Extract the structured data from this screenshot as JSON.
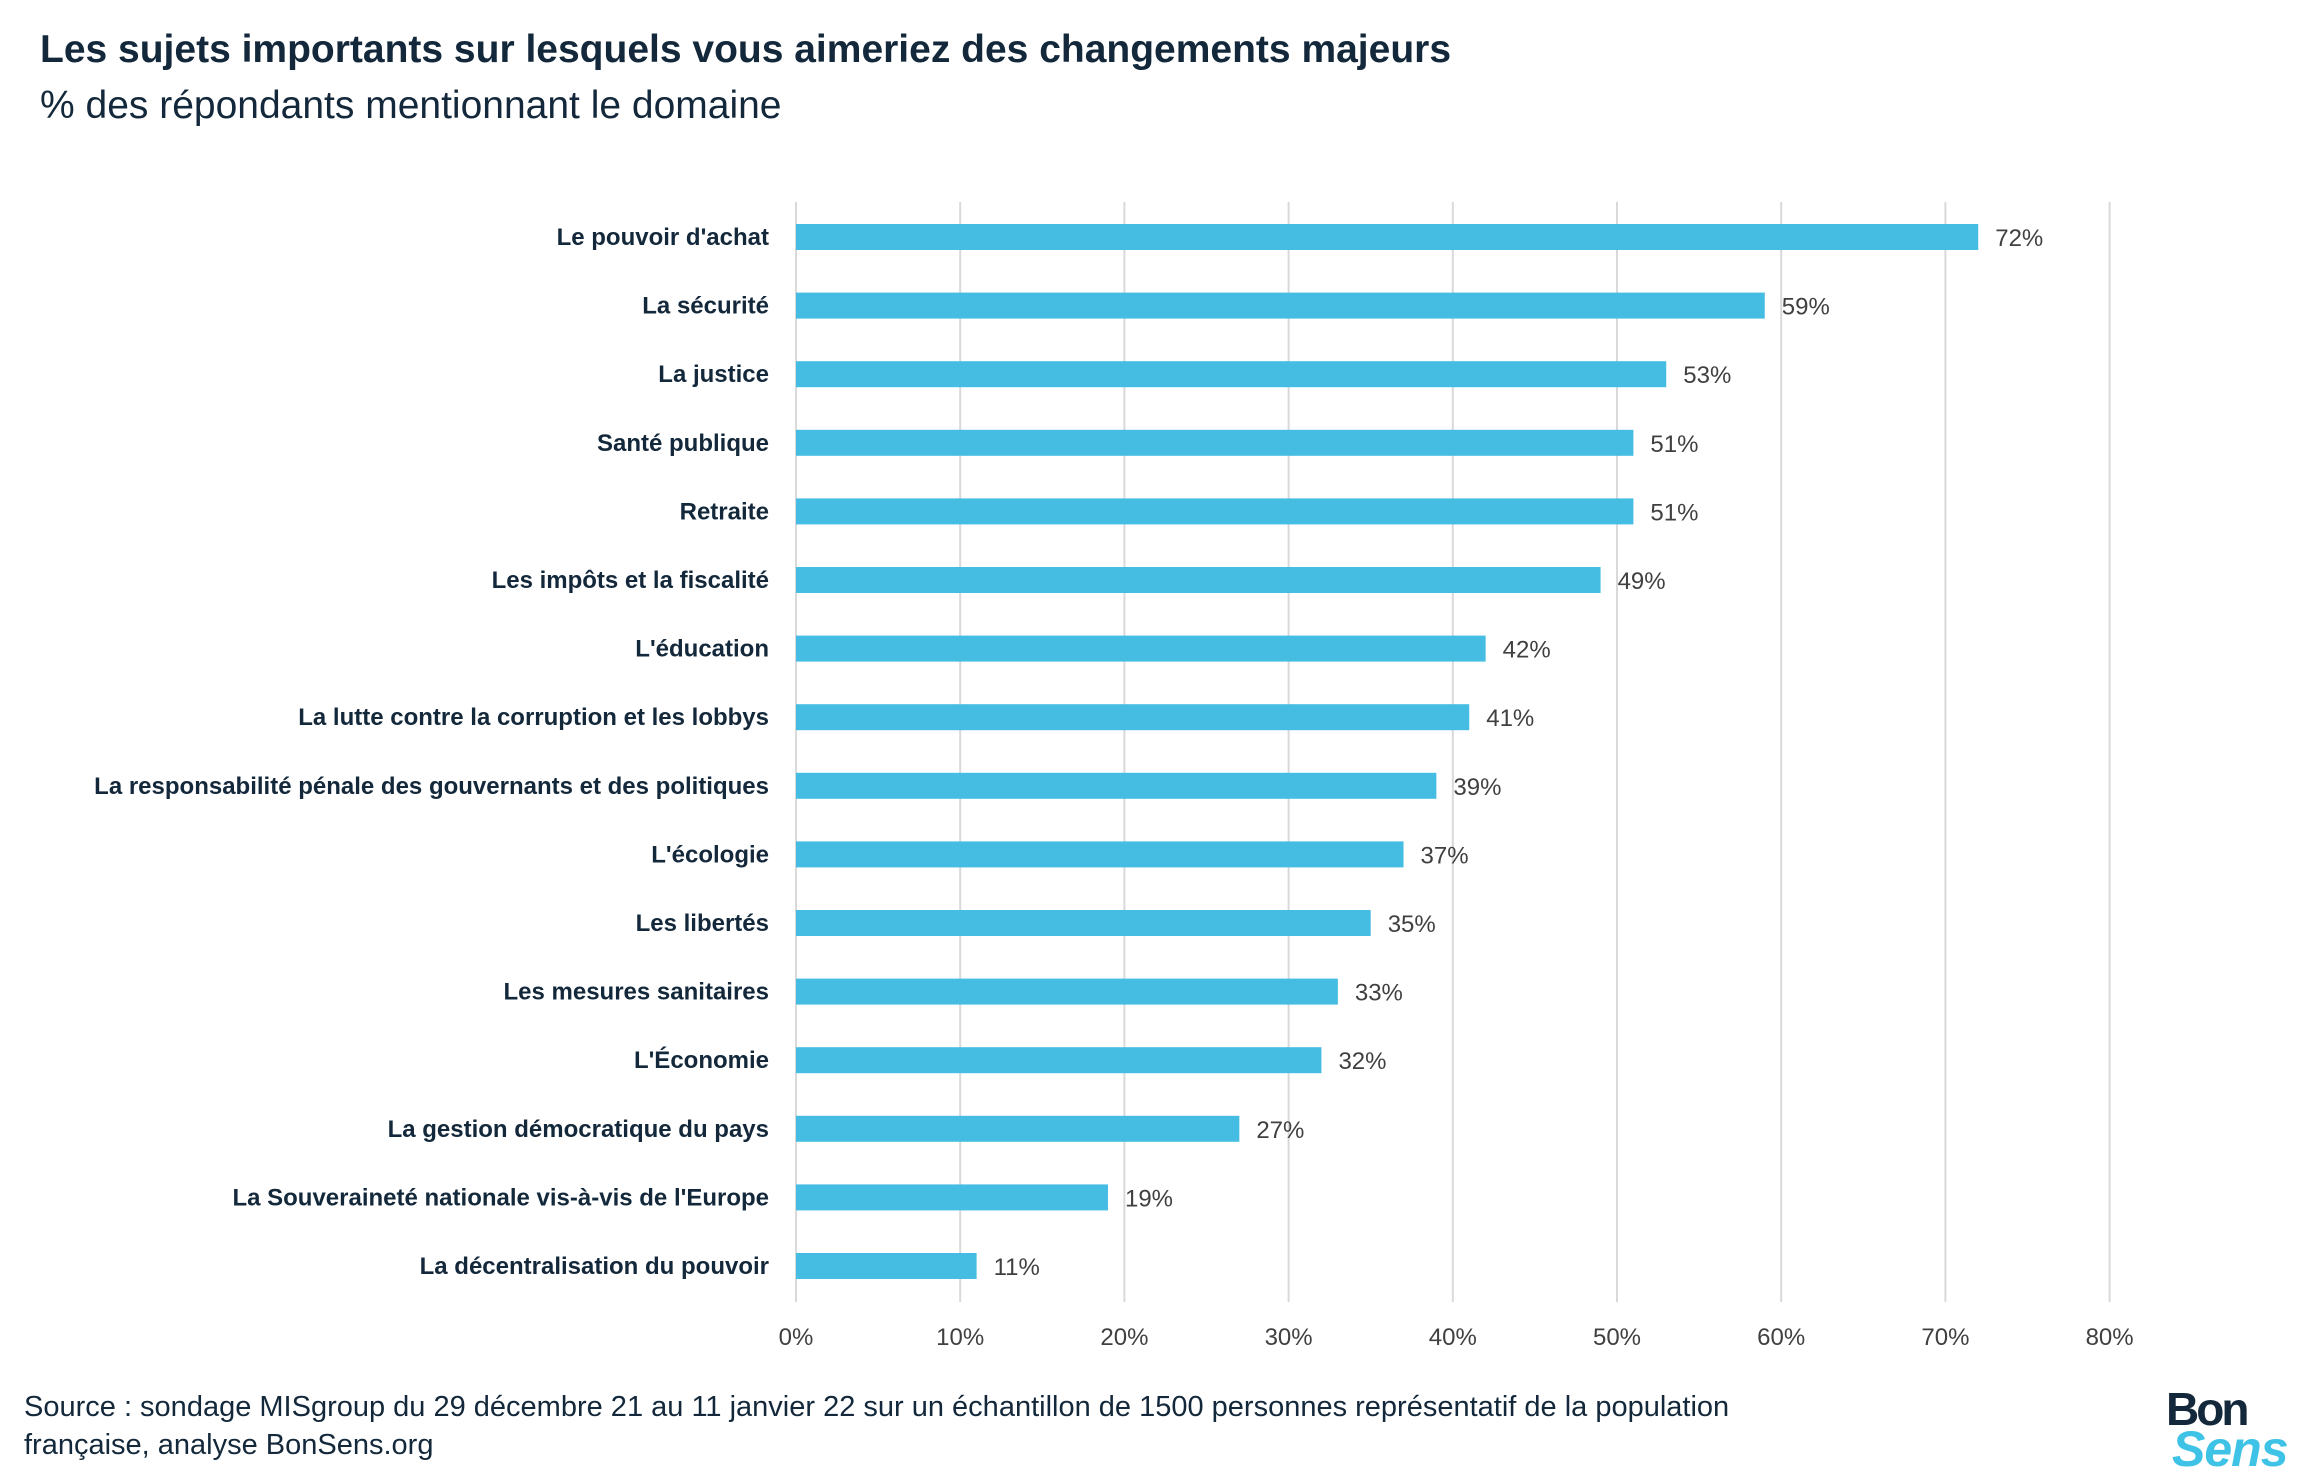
{
  "header": {
    "title": "Les sujets importants sur lesquels vous aimeriez des changements majeurs",
    "subtitle": "% des répondants mentionnant le domaine"
  },
  "footer": {
    "source": "Source : sondage MISgroup du 29 décembre 21 au 11 janvier 22 sur un échantillon de 1500 personnes représentatif de la population française, analyse BonSens.org"
  },
  "logo": {
    "line1": "Bon",
    "line2": "Sens"
  },
  "colors": {
    "bar": "#45bde3",
    "grid": "#d9d9d9",
    "text": "#13283a",
    "values": "#404040"
  },
  "chart_data": {
    "type": "bar",
    "orientation": "horizontal",
    "title": "Les sujets importants sur lesquels vous aimeriez des changements majeurs",
    "subtitle": "% des répondants mentionnant le domaine",
    "categories": [
      "Le pouvoir d'achat",
      "La sécurité",
      "La justice",
      "Santé publique",
      "Retraite",
      "Les impôts et la fiscalité",
      "L'éducation",
      "La lutte contre la corruption et les lobbys",
      "La responsabilité pénale des gouvernants et des politiques",
      "L'écologie",
      "Les libertés",
      "Les mesures sanitaires",
      "L'Économie",
      "La gestion démocratique du pays",
      "La Souveraineté nationale vis-à-vis de l'Europe",
      "La décentralisation du pouvoir"
    ],
    "values": [
      72,
      59,
      53,
      51,
      51,
      49,
      42,
      41,
      39,
      37,
      35,
      33,
      32,
      27,
      19,
      11
    ],
    "value_labels": [
      "72%",
      "59%",
      "53%",
      "51%",
      "51%",
      "49%",
      "42%",
      "41%",
      "39%",
      "37%",
      "35%",
      "33%",
      "32%",
      "27%",
      "19%",
      "11%"
    ],
    "xlim": [
      0,
      80
    ],
    "xticks": [
      0,
      10,
      20,
      30,
      40,
      50,
      60,
      70,
      80
    ],
    "xtick_labels": [
      "0%",
      "10%",
      "20%",
      "30%",
      "40%",
      "50%",
      "60%",
      "70%",
      "80%"
    ],
    "grid": true,
    "legend": "none"
  }
}
